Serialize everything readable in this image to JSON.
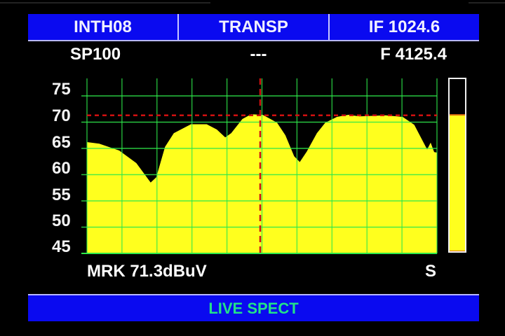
{
  "header": {
    "cells": [
      "INTH08",
      "TRANSP",
      "IF 1024.6"
    ]
  },
  "info_row": {
    "span": "SP100",
    "center": "---",
    "frequency": "F 4125.4"
  },
  "spectrum": {
    "y_ticks": [
      "75",
      "70",
      "65",
      "60",
      "55",
      "50",
      "45"
    ],
    "y_range_dbuv": [
      45,
      75
    ],
    "grid": true,
    "trace_position_pct": [
      0,
      3.5,
      9.2,
      14.1,
      18.2,
      19.8,
      22.3,
      24.8,
      29.7,
      34.2,
      37.1,
      39.5,
      41.2,
      44.4,
      46.9,
      50.2,
      54.3,
      56.7,
      59.2,
      60.8,
      62.8,
      65.7,
      68.1,
      71.4,
      74.7,
      77.9,
      85.3,
      90.2,
      93.5,
      97.2,
      98.2,
      99.2,
      100
    ],
    "trace_dbuv": [
      66.2,
      65.9,
      64.6,
      62.2,
      58.5,
      59.5,
      65.3,
      67.9,
      69.6,
      69.6,
      68.6,
      67.1,
      67.9,
      70.6,
      71.5,
      71.4,
      69.9,
      67.5,
      63.5,
      62.4,
      64.4,
      67.9,
      69.9,
      71.0,
      71.4,
      71.1,
      71.3,
      71.0,
      69.5,
      64.8,
      66.1,
      64.3,
      64.2
    ],
    "marker_position_pct": 49.5,
    "marker_level_dbuv": 71.3,
    "colors": {
      "trace": "#ffff1e",
      "grid": "#2ee84a",
      "marker": "#d01010"
    }
  },
  "level_meter": {
    "fill_pct": 79,
    "fill_color": "#ffff1e"
  },
  "marker_readout": "MRK 71.3dBuV",
  "s_label": "S",
  "footer": {
    "mode": "LIVE SPECT"
  }
}
